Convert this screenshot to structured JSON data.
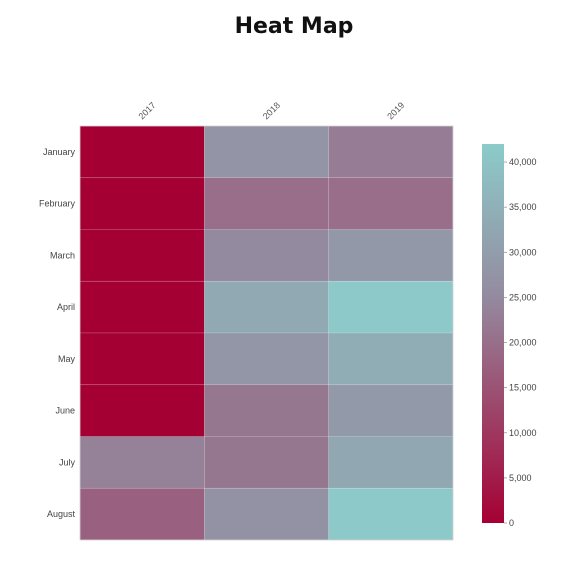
{
  "chart_data": {
    "type": "heatmap",
    "title": "Heat Map",
    "x": [
      "2017",
      "2018",
      "2019"
    ],
    "y": [
      "January",
      "February",
      "March",
      "April",
      "May",
      "June",
      "July",
      "August"
    ],
    "values": [
      [
        0,
        27500,
        22500
      ],
      [
        0,
        20000,
        20000
      ],
      [
        0,
        25000,
        28500
      ],
      [
        0,
        33000,
        41500
      ],
      [
        0,
        28000,
        34000
      ],
      [
        0,
        21500,
        29000
      ],
      [
        23500,
        21500,
        32500
      ],
      [
        17500,
        27000,
        41500
      ]
    ],
    "colorbar": {
      "min": 0,
      "max": 42000,
      "ticks": [
        "0",
        "5,000",
        "10,000",
        "15,000",
        "20,000",
        "25,000",
        "30,000",
        "35,000",
        "40,000"
      ],
      "tick_values": [
        0,
        5000,
        10000,
        15000,
        20000,
        25000,
        30000,
        35000,
        40000
      ]
    },
    "colors": {
      "low": "#a50034",
      "mid": "#948ba0",
      "high": "#8ccbc9"
    }
  }
}
